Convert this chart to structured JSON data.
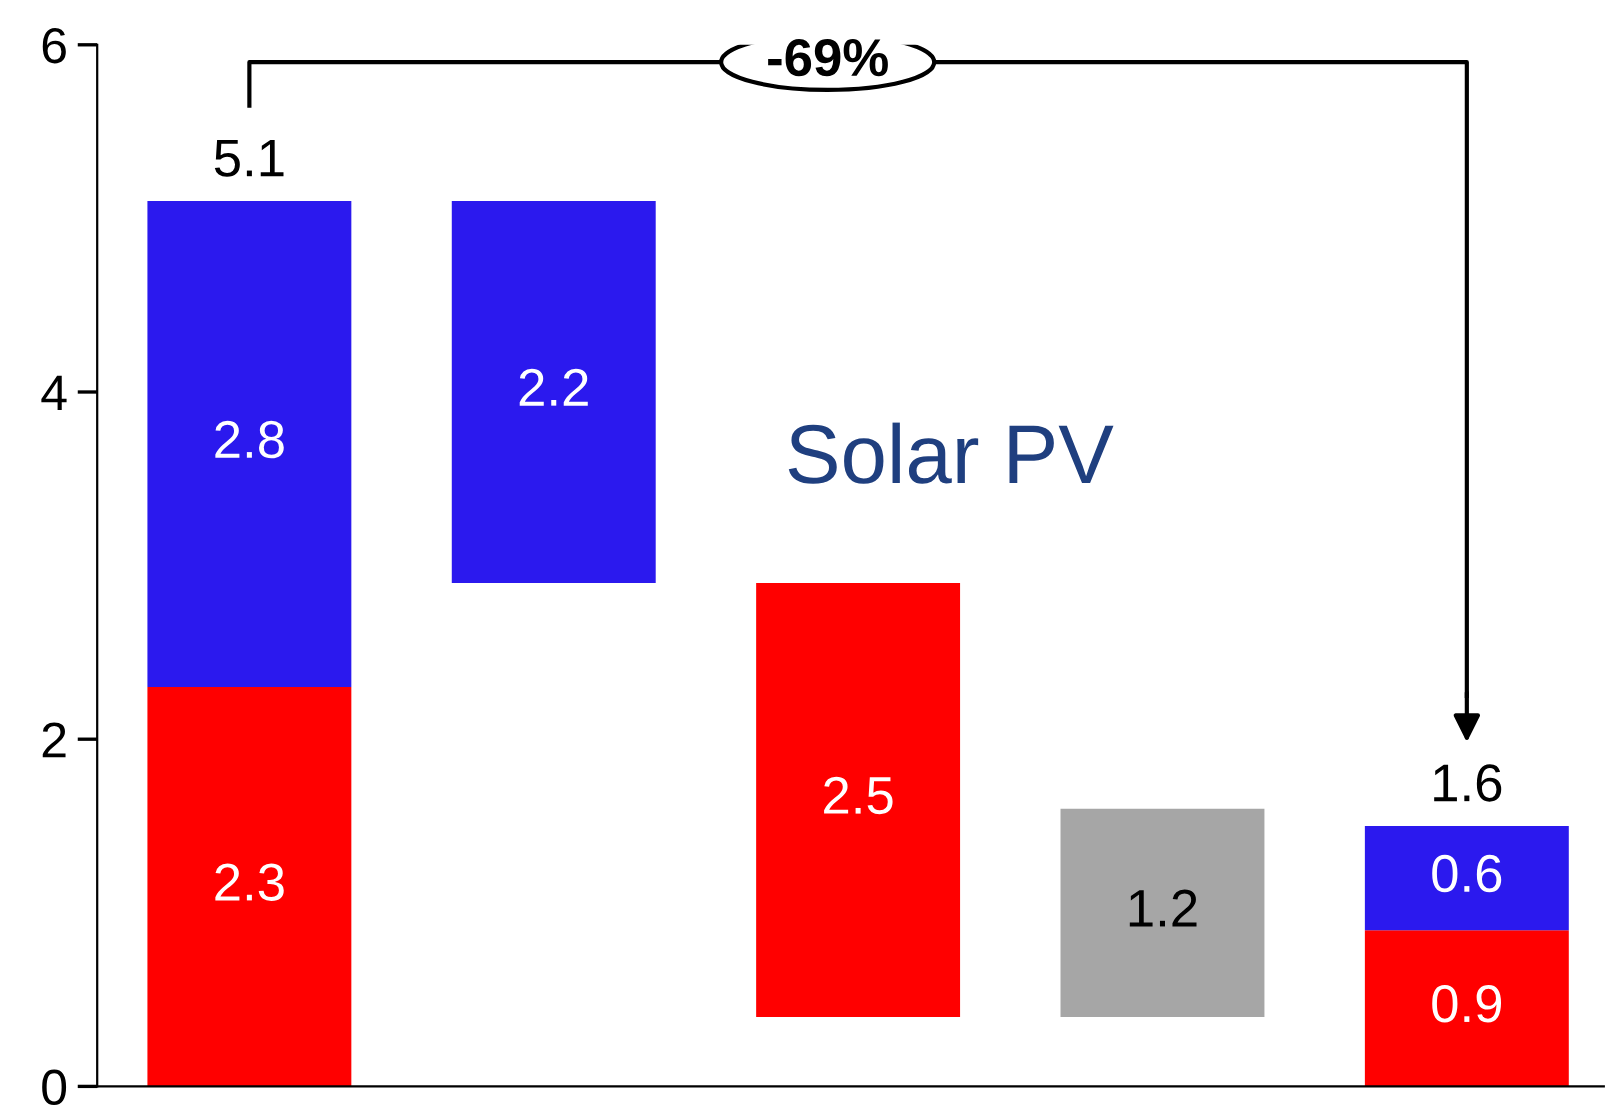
{
  "chart_data": {
    "type": "bar",
    "categories": [
      null,
      null,
      null,
      null,
      null
    ],
    "series": [
      {
        "color": "#ff0000",
        "values": [
          2.3,
          null,
          2.5,
          null,
          0.9
        ],
        "base": [
          0,
          null,
          0.4,
          null,
          0
        ]
      },
      {
        "color": "#2b19ee",
        "values": [
          2.8,
          2.2,
          null,
          null,
          0.6
        ],
        "base": [
          2.3,
          2.9,
          null,
          null,
          0.9
        ]
      },
      {
        "color": "#a6a6a6",
        "values": [
          null,
          null,
          null,
          1.2,
          null
        ],
        "base": [
          null,
          null,
          null,
          0.4,
          null
        ]
      }
    ],
    "ylim": [
      0,
      6
    ],
    "yticks": [
      0,
      2,
      4,
      6
    ],
    "data_labels": true,
    "totals": [
      "5.1",
      null,
      null,
      null,
      "1.6"
    ],
    "annotations": [
      "Solar PV",
      "-69%"
    ],
    "grid": false,
    "legend": false
  }
}
